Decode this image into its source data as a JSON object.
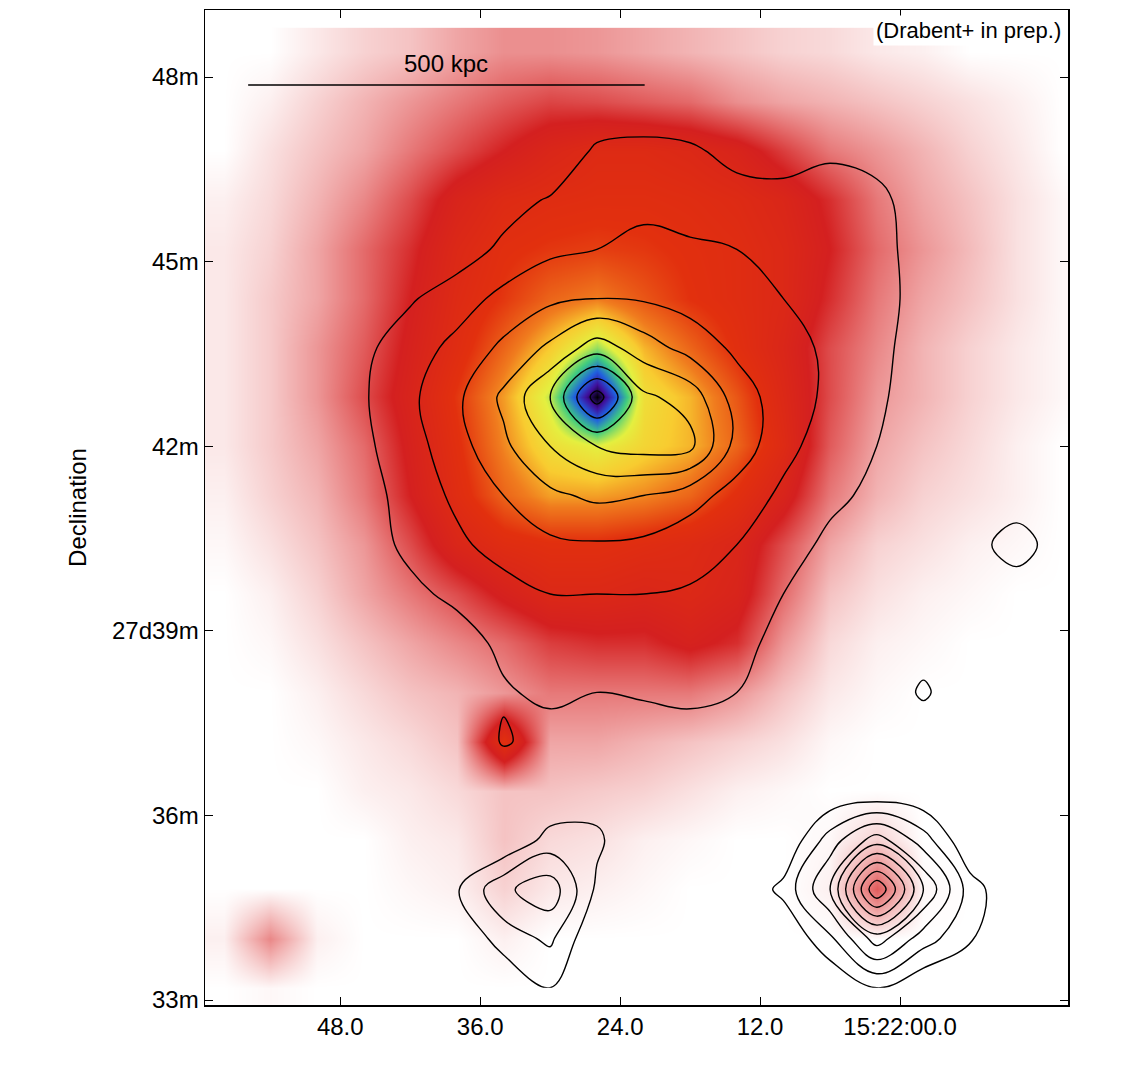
{
  "chart_data": {
    "type": "heatmap",
    "ylabel": "Declination",
    "grid": false,
    "xlim": [
      59.6,
      -14.4
    ],
    "ylim": [
      32.92,
      49.09
    ],
    "xticks": [
      {
        "value": 48,
        "label": "48.0"
      },
      {
        "value": 36,
        "label": "36.0"
      },
      {
        "value": 24,
        "label": "24.0"
      },
      {
        "value": 12,
        "label": "12.0"
      },
      {
        "value": 0,
        "label": "15:22:00.0"
      }
    ],
    "yticks": [
      {
        "value": 48,
        "label": "48m"
      },
      {
        "value": 45,
        "label": "45m"
      },
      {
        "value": 42,
        "label": "42m"
      },
      {
        "value": 39,
        "label": "27d39m"
      },
      {
        "value": 36,
        "label": "36m"
      },
      {
        "value": 33,
        "label": "33m"
      }
    ],
    "x": [
      58,
      54,
      50,
      46,
      42,
      38,
      34,
      30,
      26,
      22,
      18,
      14,
      10,
      6,
      2,
      -2,
      -6,
      -10,
      -14
    ],
    "y": [
      48.4,
      47.6,
      46.8,
      46.0,
      45.2,
      44.4,
      43.6,
      42.8,
      42.0,
      41.2,
      40.4,
      39.6,
      38.8,
      38.0,
      37.2,
      36.4,
      35.6,
      34.8,
      34.0,
      33.2
    ],
    "heatmap": {
      "zlim": [
        0,
        100
      ],
      "values": [
        [
          0,
          0,
          3,
          6,
          8,
          12,
          15,
          15,
          14,
          12,
          10,
          8,
          6,
          5,
          3,
          2,
          0,
          0,
          0
        ],
        [
          0,
          2,
          6,
          10,
          14,
          18,
          22,
          25,
          24,
          22,
          20,
          15,
          12,
          10,
          8,
          6,
          4,
          2,
          0
        ],
        [
          0,
          4,
          8,
          12,
          18,
          24,
          30,
          36,
          40,
          40,
          38,
          34,
          26,
          18,
          14,
          10,
          6,
          3,
          0
        ],
        [
          2,
          5,
          10,
          16,
          24,
          34,
          40,
          42,
          43,
          43,
          42,
          40,
          36,
          28,
          18,
          12,
          8,
          4,
          1
        ],
        [
          3,
          6,
          12,
          20,
          28,
          38,
          44,
          46,
          47,
          46,
          44,
          42,
          38,
          30,
          20,
          14,
          9,
          4,
          1
        ],
        [
          3,
          7,
          12,
          20,
          30,
          40,
          46,
          52,
          55,
          50,
          45,
          42,
          38,
          28,
          18,
          12,
          8,
          4,
          1
        ],
        [
          3,
          7,
          14,
          22,
          32,
          42,
          52,
          62,
          74,
          60,
          52,
          44,
          36,
          24,
          16,
          10,
          6,
          3,
          1
        ],
        [
          3,
          7,
          14,
          24,
          34,
          46,
          58,
          72,
          100,
          66,
          60,
          50,
          38,
          24,
          14,
          10,
          6,
          3,
          1
        ],
        [
          3,
          7,
          12,
          20,
          32,
          44,
          56,
          66,
          70,
          64,
          60,
          52,
          40,
          22,
          12,
          8,
          5,
          2,
          0
        ],
        [
          2,
          6,
          10,
          18,
          30,
          42,
          52,
          58,
          58,
          56,
          52,
          44,
          34,
          18,
          10,
          6,
          4,
          2,
          0
        ],
        [
          1,
          4,
          8,
          14,
          24,
          36,
          42,
          44,
          44,
          42,
          40,
          36,
          24,
          12,
          6,
          4,
          2,
          1,
          0
        ],
        [
          0,
          2,
          6,
          12,
          18,
          24,
          32,
          38,
          38,
          36,
          38,
          34,
          20,
          8,
          4,
          2,
          1,
          0,
          0
        ],
        [
          0,
          1,
          4,
          8,
          12,
          16,
          20,
          26,
          28,
          28,
          32,
          28,
          14,
          5,
          2,
          1,
          0,
          0,
          0
        ],
        [
          0,
          0,
          2,
          5,
          8,
          10,
          14,
          18,
          18,
          18,
          18,
          14,
          8,
          3,
          1,
          0,
          0,
          0,
          0
        ],
        [
          0,
          0,
          1,
          3,
          5,
          8,
          45,
          12,
          12,
          10,
          8,
          6,
          4,
          1,
          0,
          0,
          0,
          0,
          0
        ],
        [
          0,
          0,
          0,
          2,
          3,
          5,
          8,
          8,
          7,
          6,
          4,
          2,
          1,
          0,
          0,
          0,
          0,
          0,
          0
        ],
        [
          0,
          0,
          0,
          0,
          2,
          3,
          8,
          5,
          4,
          2,
          1,
          0,
          0,
          1,
          6,
          0,
          0,
          0,
          0
        ],
        [
          0,
          0,
          0,
          0,
          1,
          2,
          6,
          3,
          2,
          1,
          0,
          0,
          0,
          2,
          22,
          1,
          0,
          0,
          0
        ],
        [
          2,
          16,
          2,
          0,
          0,
          0,
          2,
          0,
          0,
          0,
          0,
          0,
          0,
          0,
          0,
          0,
          0,
          0,
          0
        ],
        [
          0,
          1,
          0,
          0,
          0,
          0,
          0,
          0,
          0,
          0,
          0,
          0,
          0,
          0,
          0,
          0,
          0,
          0,
          0
        ]
      ]
    },
    "contours": {
      "levels": {
        "start": 1,
        "end": 9,
        "size": 1
      },
      "color": "#000000",
      "values": [
        [
          0,
          0,
          0,
          0,
          0,
          0,
          0,
          0,
          0,
          0,
          0,
          0,
          0,
          0,
          0,
          0,
          0,
          0,
          0
        ],
        [
          0,
          0,
          0,
          0,
          0,
          0,
          0,
          0,
          0,
          0,
          0,
          0,
          0,
          0,
          0,
          0,
          0,
          0,
          0
        ],
        [
          0,
          0,
          0,
          0,
          0,
          0,
          0,
          0,
          1.2,
          1.4,
          1.2,
          0.6,
          0.5,
          0.8,
          0.6,
          0,
          0,
          0,
          0
        ],
        [
          0,
          0,
          0,
          0,
          0,
          0,
          0.6,
          1.1,
          1.6,
          1.8,
          1.7,
          1.5,
          1.4,
          1.6,
          1.3,
          0.4,
          0,
          0,
          0
        ],
        [
          0,
          0,
          0,
          0,
          0.3,
          0.5,
          1.2,
          1.8,
          2.0,
          2.2,
          2.1,
          2.0,
          1.8,
          2.0,
          1.4,
          0.5,
          0,
          0,
          0
        ],
        [
          0,
          0,
          0,
          0.4,
          0.9,
          1.5,
          2.3,
          2.8,
          3.0,
          2.9,
          2.6,
          2.3,
          2.0,
          1.8,
          1.4,
          0.6,
          0,
          0,
          0
        ],
        [
          0,
          0,
          0,
          0.8,
          1.5,
          2.3,
          3.2,
          4.2,
          5.5,
          4.5,
          3.6,
          2.8,
          2.2,
          1.9,
          1.3,
          0.5,
          0,
          0,
          0
        ],
        [
          0,
          0,
          0,
          0.9,
          1.8,
          2.8,
          4.2,
          6,
          9.5,
          6.2,
          5.6,
          3.5,
          2.5,
          1.8,
          1.2,
          0.4,
          0,
          0,
          0
        ],
        [
          0,
          0,
          0,
          0.8,
          1.6,
          2.6,
          3.8,
          5,
          6,
          6.4,
          6.3,
          3.6,
          2.3,
          1.5,
          1.0,
          0.3,
          0,
          0,
          0
        ],
        [
          0,
          0,
          0,
          0.6,
          1.4,
          2.2,
          3.0,
          3.8,
          4.2,
          4.0,
          3.4,
          2.6,
          1.8,
          1.2,
          0.8,
          0,
          0,
          0,
          0
        ],
        [
          0,
          0,
          0.3,
          0.6,
          1.2,
          1.8,
          2.4,
          2.8,
          2.9,
          2.8,
          2.4,
          2.0,
          1.4,
          0.8,
          0.4,
          0,
          0.3,
          1.8,
          0
        ],
        [
          0,
          0,
          0,
          0,
          0.8,
          1.2,
          1.6,
          2.0,
          2.0,
          2.0,
          1.9,
          1.6,
          1.0,
          0.4,
          0,
          0,
          0,
          0,
          0
        ],
        [
          0,
          0,
          0,
          0,
          0,
          0.6,
          1.2,
          1.6,
          1.5,
          1.5,
          1.5,
          1.3,
          0.7,
          0,
          0,
          0.4,
          0,
          0,
          0
        ],
        [
          0,
          0,
          0,
          0,
          0,
          0,
          0.9,
          1.2,
          1.0,
          1.1,
          1.2,
          1.0,
          0.4,
          0,
          0,
          1.2,
          0,
          0,
          0
        ],
        [
          0,
          0,
          0,
          0,
          0,
          0,
          1.1,
          0.6,
          0.5,
          0.5,
          0.6,
          0.4,
          0,
          0,
          0,
          0,
          0,
          0,
          0
        ],
        [
          0,
          0,
          0,
          0,
          0,
          0,
          0,
          0,
          0.5,
          0,
          0,
          0,
          0,
          0,
          0,
          0,
          0,
          0,
          0
        ],
        [
          0,
          0,
          0,
          0,
          0,
          0.8,
          0,
          1.4,
          1.2,
          0,
          0,
          0,
          0,
          2.5,
          4.5,
          2.5,
          0,
          0,
          0
        ],
        [
          0,
          0,
          0,
          0,
          0,
          0.9,
          2.8,
          3.6,
          0.8,
          0,
          0,
          0,
          1.3,
          4,
          10,
          5,
          1.5,
          0,
          0
        ],
        [
          0,
          0,
          0,
          0,
          0,
          0,
          1.5,
          2.2,
          0,
          0,
          0,
          0,
          0,
          1.8,
          4.5,
          2.5,
          1.1,
          0,
          0
        ],
        [
          0,
          0,
          0,
          0,
          0,
          0,
          0,
          1.0,
          0,
          0,
          0,
          0,
          0,
          0,
          1.0,
          0,
          0,
          0,
          0
        ]
      ]
    },
    "scale_bar": {
      "label": "500 kpc",
      "x": [
        55.9,
        21.9
      ],
      "y": 47.87
    },
    "annotations": [
      {
        "text": "(Drabent+ in prep.)"
      }
    ]
  }
}
